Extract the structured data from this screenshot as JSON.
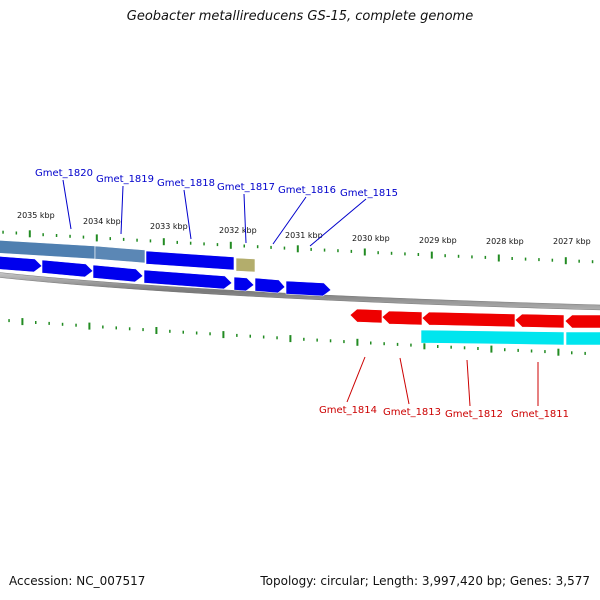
{
  "header": {
    "title": "Geobacter metallireducens GS-15, complete genome"
  },
  "footer": {
    "accession": "Accession: NC_007517",
    "summary": "Topology: circular; Length: 3,997,420 bp; Genes: 3,577"
  },
  "colors": {
    "forward_gene": "#0000ee",
    "forward_rna": "#4f7fb0",
    "forward_other": "#b3ad6c",
    "reverse_gene": "#ee0000",
    "reverse_rna": "#00e5ee",
    "forward_label": "#0000cc",
    "reverse_label": "#cc0000",
    "tick": "#228b22",
    "backbone": "#808080"
  },
  "scale": {
    "labels": [
      "2035 kbp",
      "2034 kbp",
      "2033 kbp",
      "2032 kbp",
      "2031 kbp",
      "2030 kbp",
      "2029 kbp",
      "2028 kbp",
      "2027 kbp"
    ]
  },
  "forward_labels": [
    "Gmet_1820",
    "Gmet_1819",
    "Gmet_1818",
    "Gmet_1817",
    "Gmet_1816",
    "Gmet_1815"
  ],
  "reverse_labels": [
    "Gmet_1814",
    "Gmet_1813",
    "Gmet_1812",
    "Gmet_1811"
  ]
}
